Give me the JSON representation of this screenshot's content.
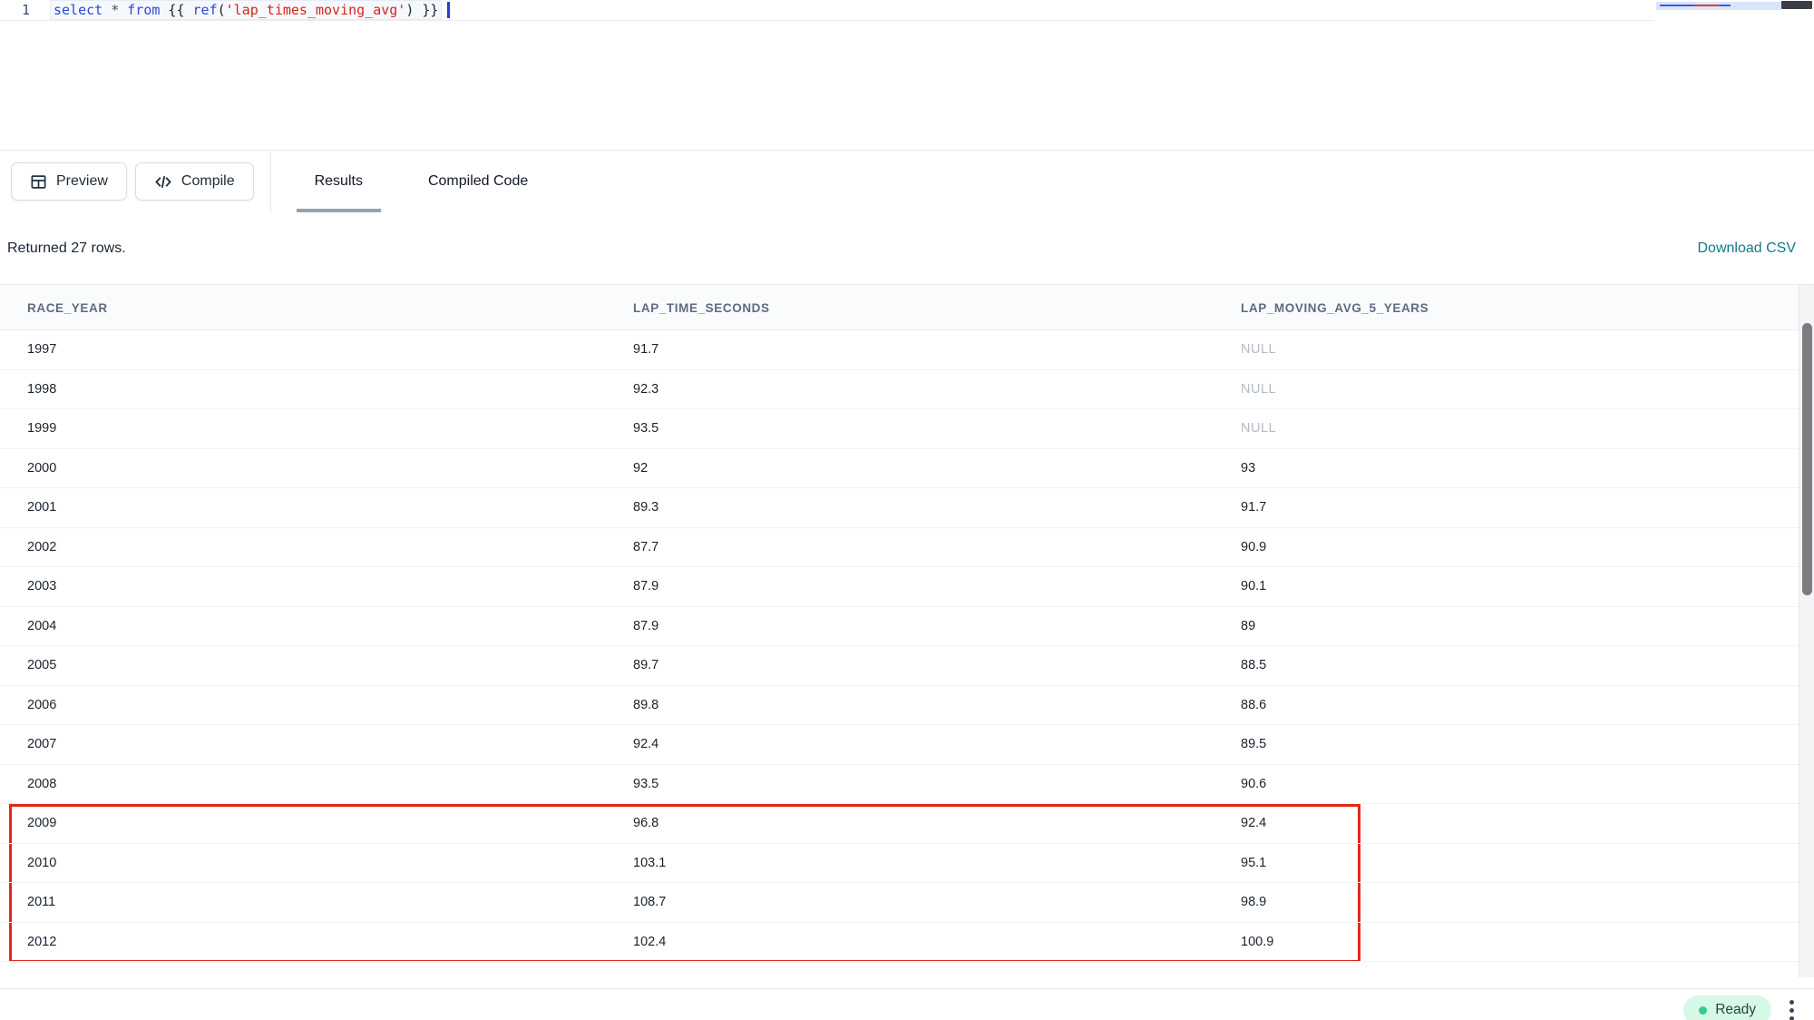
{
  "editor": {
    "line_number": "1",
    "code_plain": "select * from {{ ref('lap_times_moving_avg') }}",
    "code_tokens": [
      {
        "text": "select",
        "type": "kw"
      },
      {
        "text": " ",
        "type": "plain"
      },
      {
        "text": "*",
        "type": "op"
      },
      {
        "text": " ",
        "type": "plain"
      },
      {
        "text": "from",
        "type": "kw"
      },
      {
        "text": " {{ ",
        "type": "plain"
      },
      {
        "text": "ref",
        "type": "kw"
      },
      {
        "text": "(",
        "type": "plain"
      },
      {
        "text": "'lap_times_moving_avg'",
        "type": "str"
      },
      {
        "text": ")",
        "type": "plain"
      },
      {
        "text": " }}",
        "type": "plain"
      }
    ]
  },
  "toolbar": {
    "preview_label": "Preview",
    "compile_label": "Compile",
    "tabs": [
      {
        "label": "Results",
        "active": true
      },
      {
        "label": "Compiled Code",
        "active": false
      }
    ]
  },
  "results": {
    "summary": "Returned 27 rows.",
    "download_csv_label": "Download CSV",
    "columns": [
      "RACE_YEAR",
      "LAP_TIME_SECONDS",
      "LAP_MOVING_AVG_5_YEARS"
    ],
    "rows": [
      [
        "1997",
        "91.7",
        "NULL"
      ],
      [
        "1998",
        "92.3",
        "NULL"
      ],
      [
        "1999",
        "93.5",
        "NULL"
      ],
      [
        "2000",
        "92",
        "93"
      ],
      [
        "2001",
        "89.3",
        "91.7"
      ],
      [
        "2002",
        "87.7",
        "90.9"
      ],
      [
        "2003",
        "87.9",
        "90.1"
      ],
      [
        "2004",
        "87.9",
        "89"
      ],
      [
        "2005",
        "89.7",
        "88.5"
      ],
      [
        "2006",
        "89.8",
        "88.6"
      ],
      [
        "2007",
        "92.4",
        "89.5"
      ],
      [
        "2008",
        "93.5",
        "90.6"
      ],
      [
        "2009",
        "96.8",
        "92.4"
      ],
      [
        "2010",
        "103.1",
        "95.1"
      ],
      [
        "2011",
        "108.7",
        "98.9"
      ],
      [
        "2012",
        "102.4",
        "100.9"
      ]
    ],
    "highlighted_years": [
      "2009",
      "2010",
      "2011",
      "2012"
    ]
  },
  "status_bar": {
    "ready_label": "Ready"
  },
  "colors": {
    "accent_teal": "#147a8c",
    "annotation_red": "#e52717",
    "ready_green": "#2fcf8d",
    "keyword_blue": "#2f49d1",
    "string_red": "#d92419"
  }
}
